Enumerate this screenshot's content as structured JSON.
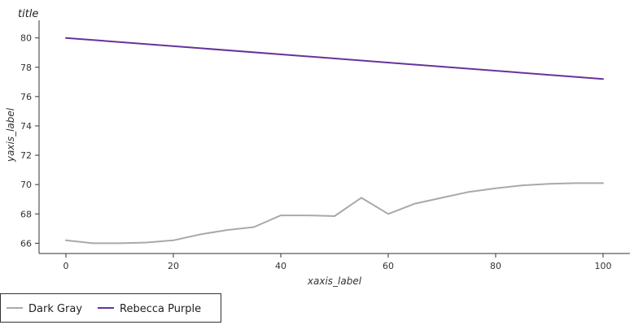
{
  "chart_data": {
    "type": "line",
    "title": "title",
    "xlabel": "xaxis_label",
    "ylabel": "yaxis_label",
    "xlim": [
      -5,
      105
    ],
    "ylim": [
      65.3,
      81.2
    ],
    "x_ticks": [
      0,
      20,
      40,
      60,
      80,
      100
    ],
    "y_ticks": [
      66,
      68,
      70,
      72,
      74,
      76,
      78,
      80
    ],
    "grid": false,
    "legend_position": "bottom-left",
    "series": [
      {
        "name": "Dark Gray",
        "color": "#a9a9a9",
        "x": [
          0,
          5,
          10,
          15,
          20,
          25,
          30,
          35,
          40,
          45,
          50,
          55,
          60,
          65,
          70,
          75,
          80,
          85,
          90,
          95,
          100
        ],
        "values": [
          66.2,
          66.0,
          66.0,
          66.05,
          66.2,
          66.6,
          66.9,
          67.1,
          67.9,
          67.9,
          67.85,
          69.1,
          68.0,
          68.7,
          69.1,
          69.5,
          69.75,
          69.95,
          70.05,
          70.1,
          70.1
        ]
      },
      {
        "name": "Rebecca Purple",
        "color": "#663399",
        "x": [
          0,
          100
        ],
        "values": [
          80.0,
          77.2
        ]
      }
    ]
  }
}
